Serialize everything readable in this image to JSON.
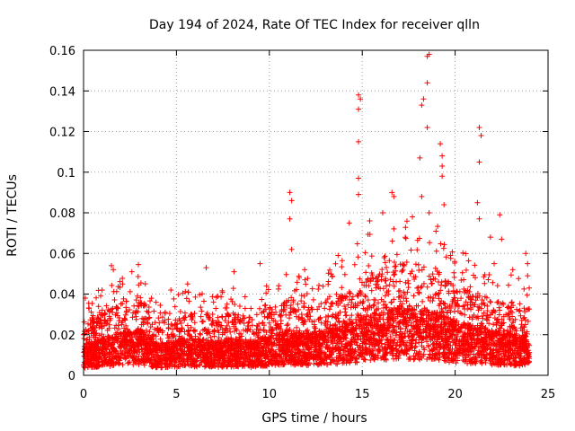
{
  "chart_data": {
    "type": "scatter",
    "title": "Day 194 of 2024, Rate Of TEC Index for receiver qlln",
    "xlabel": "GPS time / hours",
    "ylabel": "ROTI / TECUs",
    "xlim": [
      0,
      25
    ],
    "ylim": [
      0,
      0.16
    ],
    "x_ticks": [
      0,
      5,
      10,
      15,
      20,
      25
    ],
    "x_tick_labels": [
      "0",
      "5",
      "10",
      "15",
      "20",
      "25"
    ],
    "y_ticks": [
      0,
      0.02,
      0.04,
      0.06,
      0.08,
      0.1,
      0.12,
      0.14,
      0.16
    ],
    "y_tick_labels": [
      "0",
      "0.02",
      "0.04",
      "0.06",
      "0.08",
      "0.1",
      "0.12",
      "0.14",
      "0.16"
    ],
    "grid": true,
    "marker": "plus",
    "color": "#ff0000",
    "series": [
      {
        "name": "ROTI",
        "x_range": [
          0,
          24
        ],
        "baseline_profile": [
          [
            0,
            0.012
          ],
          [
            1,
            0.014
          ],
          [
            2,
            0.016
          ],
          [
            3,
            0.018
          ],
          [
            4,
            0.012
          ],
          [
            5,
            0.013
          ],
          [
            6,
            0.014
          ],
          [
            7,
            0.013
          ],
          [
            8,
            0.014
          ],
          [
            9,
            0.013
          ],
          [
            10,
            0.015
          ],
          [
            11,
            0.017
          ],
          [
            12,
            0.016
          ],
          [
            13,
            0.017
          ],
          [
            14,
            0.019
          ],
          [
            15,
            0.022
          ],
          [
            16,
            0.024
          ],
          [
            17,
            0.026
          ],
          [
            18,
            0.025
          ],
          [
            19,
            0.024
          ],
          [
            20,
            0.02
          ],
          [
            21,
            0.019
          ],
          [
            22,
            0.017
          ],
          [
            23,
            0.016
          ],
          [
            24,
            0.015
          ]
        ],
        "notable_points": [
          [
            0.1,
            0.038
          ],
          [
            0.3,
            0.033
          ],
          [
            1.0,
            0.042
          ],
          [
            1.5,
            0.054
          ],
          [
            1.6,
            0.052
          ],
          [
            2.1,
            0.045
          ],
          [
            2.6,
            0.051
          ],
          [
            2.9,
            0.039
          ],
          [
            4.7,
            0.042
          ],
          [
            5.6,
            0.045
          ],
          [
            6.6,
            0.053
          ],
          [
            8.1,
            0.051
          ],
          [
            9.5,
            0.055
          ],
          [
            11.1,
            0.09
          ],
          [
            11.2,
            0.086
          ],
          [
            11.1,
            0.077
          ],
          [
            11.2,
            0.062
          ],
          [
            11.9,
            0.052
          ],
          [
            13.7,
            0.059
          ],
          [
            14.3,
            0.075
          ],
          [
            14.8,
            0.138
          ],
          [
            14.8,
            0.131
          ],
          [
            14.8,
            0.115
          ],
          [
            14.9,
            0.136
          ],
          [
            14.8,
            0.097
          ],
          [
            14.8,
            0.089
          ],
          [
            15.4,
            0.076
          ],
          [
            16.1,
            0.08
          ],
          [
            16.6,
            0.09
          ],
          [
            16.7,
            0.088
          ],
          [
            17.7,
            0.078
          ],
          [
            18.2,
            0.133
          ],
          [
            18.3,
            0.136
          ],
          [
            18.1,
            0.107
          ],
          [
            18.2,
            0.088
          ],
          [
            18.5,
            0.157
          ],
          [
            18.6,
            0.158
          ],
          [
            18.5,
            0.144
          ],
          [
            18.5,
            0.122
          ],
          [
            18.6,
            0.08
          ],
          [
            19.2,
            0.114
          ],
          [
            19.3,
            0.108
          ],
          [
            19.3,
            0.103
          ],
          [
            19.3,
            0.098
          ],
          [
            19.4,
            0.084
          ],
          [
            21.3,
            0.122
          ],
          [
            21.4,
            0.118
          ],
          [
            21.3,
            0.105
          ],
          [
            21.2,
            0.085
          ],
          [
            21.3,
            0.077
          ],
          [
            21.9,
            0.068
          ],
          [
            22.1,
            0.055
          ],
          [
            22.4,
            0.079
          ],
          [
            22.5,
            0.067
          ],
          [
            23.1,
            0.052
          ],
          [
            23.8,
            0.06
          ],
          [
            23.9,
            0.055
          ],
          [
            23.9,
            0.049
          ]
        ]
      }
    ]
  }
}
